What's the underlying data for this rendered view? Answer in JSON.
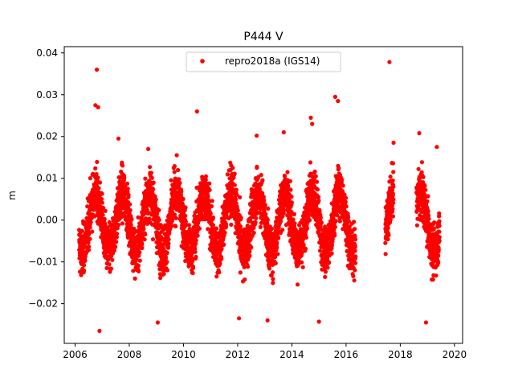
{
  "chart_data": {
    "type": "scatter",
    "title": "P444 V",
    "xlabel": "",
    "ylabel": "m",
    "xlim": [
      2005.6,
      2020.3
    ],
    "ylim": [
      -0.0295,
      0.0415
    ],
    "xticks": [
      2006,
      2008,
      2010,
      2012,
      2014,
      2016,
      2018,
      2020
    ],
    "xtick_labels": [
      "2006",
      "2008",
      "2010",
      "2012",
      "2014",
      "2016",
      "2018",
      "2020"
    ],
    "yticks": [
      -0.02,
      -0.01,
      0.0,
      0.01,
      0.02,
      0.03,
      0.04
    ],
    "ytick_labels": [
      "−0.02",
      "−0.01",
      "0.00",
      "0.01",
      "0.02",
      "0.03",
      "0.04"
    ],
    "legend": {
      "position": "top-center",
      "entries": [
        "repro2018a (IGS14)"
      ]
    },
    "grid": false,
    "series": [
      {
        "name": "repro2018a (IGS14)",
        "color": "#ff0000",
        "marker": "circle",
        "segments": [
          {
            "start": 2006.15,
            "end": 2016.35
          },
          {
            "start": 2017.45,
            "end": 2017.75
          },
          {
            "start": 2018.6,
            "end": 2019.45
          }
        ],
        "seasonal": {
          "amplitude": 0.007,
          "peak_phase_year": 0.75,
          "noise_sd": 0.0045,
          "mean": -0.0005
        },
        "notable_points": [
          {
            "x": 2006.8,
            "y": 0.036
          },
          {
            "x": 2006.75,
            "y": 0.0275
          },
          {
            "x": 2006.85,
            "y": 0.027
          },
          {
            "x": 2010.5,
            "y": 0.026
          },
          {
            "x": 2015.6,
            "y": 0.0295
          },
          {
            "x": 2015.7,
            "y": 0.0285
          },
          {
            "x": 2017.6,
            "y": 0.0378
          },
          {
            "x": 2014.7,
            "y": 0.0245
          },
          {
            "x": 2014.75,
            "y": 0.023
          },
          {
            "x": 2006.9,
            "y": -0.0265
          },
          {
            "x": 2009.05,
            "y": -0.0245
          },
          {
            "x": 2012.05,
            "y": -0.0235
          },
          {
            "x": 2013.1,
            "y": -0.024
          },
          {
            "x": 2015.0,
            "y": -0.0243
          },
          {
            "x": 2018.95,
            "y": -0.0245
          },
          {
            "x": 2007.6,
            "y": 0.0195
          },
          {
            "x": 2008.7,
            "y": 0.017
          },
          {
            "x": 2012.7,
            "y": 0.0202
          },
          {
            "x": 2013.7,
            "y": 0.021
          },
          {
            "x": 2018.7,
            "y": 0.0208
          },
          {
            "x": 2019.35,
            "y": 0.0175
          },
          {
            "x": 2017.75,
            "y": 0.0185
          }
        ]
      }
    ]
  }
}
